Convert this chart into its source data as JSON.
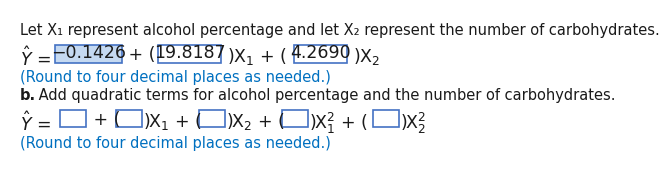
{
  "background_color": "#ffffff",
  "line1": "Let X₁ represent alcohol percentage and let X₂ represent the number of carbohydrates.",
  "round1": "(Round to four decimal places as needed.)",
  "bold_b": "b.",
  "line_b": " Add quadratic terms for alcohol percentage and the number of carbohydrates.",
  "round2": "(Round to four decimal places as needed.)",
  "text_color": "#1a1a1a",
  "blue_color": "#0070C0",
  "highlight_color": "#c5d9f1",
  "box_edge_color": "#4472C4",
  "font_size_main": 10.5,
  "font_size_eq": 12.5,
  "box1_text": "−0.1426",
  "box2_text": "19.8187",
  "box3_text": "4.2690"
}
